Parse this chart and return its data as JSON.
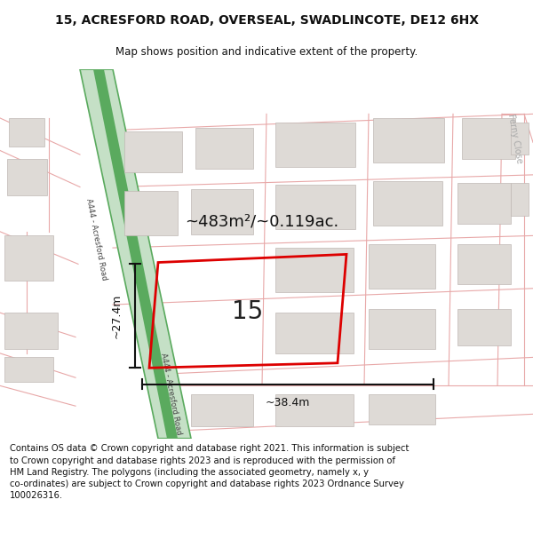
{
  "title": "15, ACRESFORD ROAD, OVERSEAL, SWADLINCOTE, DE12 6HX",
  "subtitle": "Map shows position and indicative extent of the property.",
  "footer": "Contains OS data © Crown copyright and database right 2021. This information is subject\nto Crown copyright and database rights 2023 and is reproduced with the permission of\nHM Land Registry. The polygons (including the associated geometry, namely x, y\nco-ordinates) are subject to Crown copyright and database rights 2023 Ordnance Survey\n100026316.",
  "area_label": "~483m²/~0.119ac.",
  "width_label": "~38.4m",
  "height_label": "~27.4m",
  "lot_number": "15",
  "map_bg": "#f2f0ed",
  "road_green_dark": "#5aaa5e",
  "road_green_light": "#c5e0c6",
  "building_fill": "#dedad6",
  "building_stroke": "#c0b8b4",
  "plot_stroke": "#dd0000",
  "road_line_color": "#e8a8a8",
  "dim_line_color": "#111111",
  "road_label_color": "#444444",
  "title_color": "#111111",
  "ferny_close_color": "#aaaaaa"
}
